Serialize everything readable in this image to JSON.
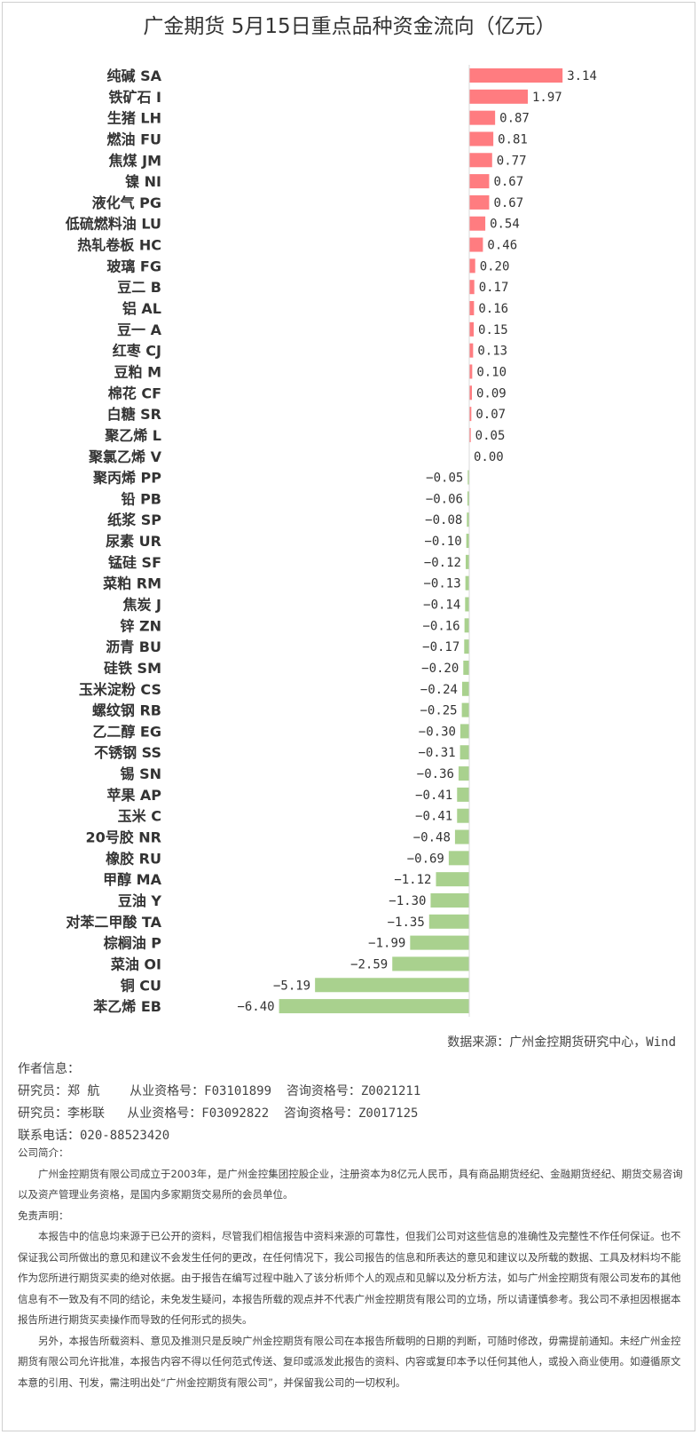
{
  "chart_data": {
    "type": "bar",
    "orientation": "horizontal",
    "title": "广金期货 5月15日重点品种资金流向（亿元）",
    "categories": [
      "纯碱 SA",
      "铁矿石 I",
      "生猪 LH",
      "燃油 FU",
      "焦煤 JM",
      "镍 NI",
      "液化气 PG",
      "低硫燃料油 LU",
      "热轧卷板 HC",
      "玻璃 FG",
      "豆二 B",
      "铝 AL",
      "豆一 A",
      "红枣 CJ",
      "豆粕 M",
      "棉花 CF",
      "白糖 SR",
      "聚乙烯 L",
      "聚氯乙烯 V",
      "聚丙烯 PP",
      "铅 PB",
      "纸浆 SP",
      "尿素 UR",
      "锰硅 SF",
      "菜粕 RM",
      "焦炭 J",
      "锌 ZN",
      "沥青 BU",
      "硅铁 SM",
      "玉米淀粉 CS",
      "螺纹钢 RB",
      "乙二醇 EG",
      "不锈钢 SS",
      "锡 SN",
      "苹果 AP",
      "玉米 C",
      "20号胶 NR",
      "橡胶 RU",
      "甲醇 MA",
      "豆油 Y",
      "对苯二甲酸 TA",
      "棕榈油 P",
      "菜油 OI",
      "铜 CU",
      "苯乙烯 EB"
    ],
    "values": [
      3.14,
      1.97,
      0.87,
      0.81,
      0.77,
      0.67,
      0.67,
      0.54,
      0.46,
      0.2,
      0.17,
      0.16,
      0.15,
      0.13,
      0.1,
      0.09,
      0.07,
      0.05,
      0.0,
      -0.05,
      -0.06,
      -0.08,
      -0.1,
      -0.12,
      -0.13,
      -0.14,
      -0.16,
      -0.17,
      -0.2,
      -0.24,
      -0.25,
      -0.3,
      -0.31,
      -0.36,
      -0.41,
      -0.41,
      -0.48,
      -0.69,
      -1.12,
      -1.3,
      -1.35,
      -1.99,
      -2.59,
      -5.19,
      -6.4
    ],
    "colors": {
      "positive": "#ff7c80",
      "negative": "#a9d18e"
    },
    "xlim": [
      -6.4,
      3.14
    ],
    "grid": false
  },
  "source": "数据来源：广州金控期货研究中心，Wind",
  "author": {
    "heading": "作者信息：",
    "line1": "研究员：郑 航    从业资格号：F03101899  咨询资格号：Z0021211",
    "line2": "研究员：李彬联   从业资格号：F03092822  咨询资格号：Z0017125",
    "phone": "联系电话：020-88523420"
  },
  "company": {
    "heading": "公司简介：",
    "text": "广州金控期货有限公司成立于2003年，是广州金控集团控股企业，注册资本为8亿元人民币，具有商品期货经纪、金融期货经纪、期货交易咨询以及资产管理业务资格，是国内多家期货交易所的会员单位。"
  },
  "disclaimer": {
    "heading": "免责声明：",
    "p1": "本报告中的信息均来源于已公开的资料，尽管我们相信报告中资料来源的可靠性，但我们公司对这些信息的准确性及完整性不作任何保证。也不保证我公司所做出的意见和建议不会发生任何的更改，在任何情况下，我公司报告的信息和所表达的意见和建议以及所载的数据、工具及材料均不能作为您所进行期货买卖的绝对依据。由于报告在编写过程中融入了该分析师个人的观点和见解以及分析方法，如与广州金控期货有限公司发布的其他信息有不一致及有不同的结论，未免发生疑问，本报告所载的观点并不代表广州金控期货有限公司的立场，所以请谨慎参考。我公司不承担因根据本报告所进行期货买卖操作而导致的任何形式的损失。",
    "p2": "另外，本报告所载资料、意见及推测只是反映广州金控期货有限公司在本报告所载明的日期的判断，可随时修改，毋需提前通知。未经广州金控期货有限公司允许批准，本报告内容不得以任何范式传送、复印或派发此报告的资料、内容或复印本予以任何其他人，或投入商业使用。如遵循原文本意的引用、刊发，需注明出处“广州金控期货有限公司”，并保留我公司的一切权利。"
  }
}
